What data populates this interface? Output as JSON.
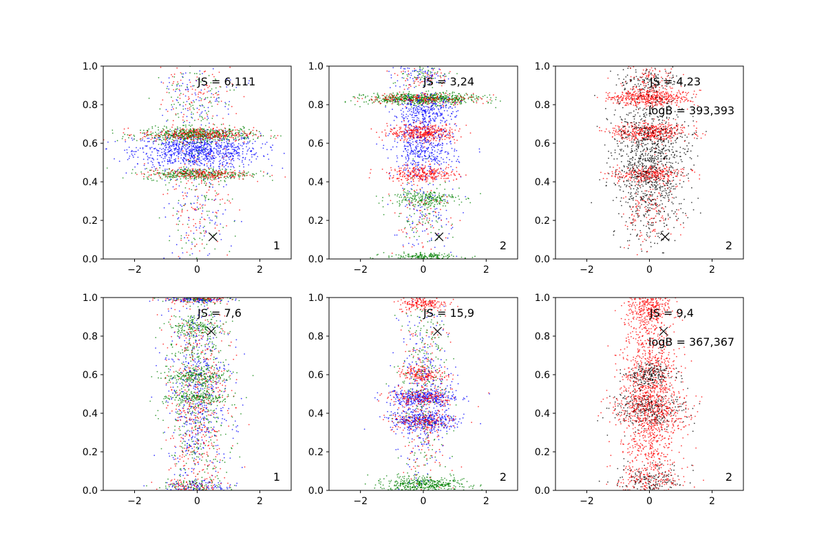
{
  "chart_data": [
    {
      "type": "scatter",
      "xlim": [
        -3,
        3
      ],
      "ylim": [
        0,
        1
      ],
      "xticks": [
        "−2",
        "0",
        "2"
      ],
      "yticks": [
        "0.0",
        "0.2",
        "0.4",
        "0.6",
        "0.8",
        "1.0"
      ],
      "grid": false,
      "annotation_js": "JS = 6,111",
      "annotation_logb": "",
      "panel_label": "1",
      "marker_x": {
        "x": 0.5,
        "y": 0.115
      },
      "colors": [
        "#0000ff",
        "#ff0000",
        "#008000"
      ],
      "clusters": [
        {
          "x": 0.0,
          "y": 0.56,
          "sx": 1.0,
          "sy": 0.045,
          "n": 900,
          "c": "#0000ff"
        },
        {
          "x": 0.0,
          "y": 0.645,
          "sx": 0.9,
          "sy": 0.018,
          "n": 550,
          "c": "#008000"
        },
        {
          "x": 0.0,
          "y": 0.645,
          "sx": 0.9,
          "sy": 0.018,
          "n": 300,
          "c": "#ff0000"
        },
        {
          "x": 0.0,
          "y": 0.44,
          "sx": 0.85,
          "sy": 0.015,
          "n": 350,
          "c": "#008000"
        },
        {
          "x": 0.0,
          "y": 0.44,
          "sx": 0.85,
          "sy": 0.015,
          "n": 200,
          "c": "#ff0000"
        },
        {
          "x": 0.0,
          "y": 0.3,
          "sx": 0.55,
          "sy": 0.18,
          "n": 350,
          "c": "mix"
        },
        {
          "x": 0.0,
          "y": 0.85,
          "sx": 0.55,
          "sy": 0.1,
          "n": 300,
          "c": "mix"
        }
      ]
    },
    {
      "type": "scatter",
      "xlim": [
        -3,
        3
      ],
      "ylim": [
        0,
        1
      ],
      "xticks": [
        "−2",
        "0",
        "2"
      ],
      "yticks": [
        "0.0",
        "0.2",
        "0.4",
        "0.6",
        "0.8",
        "1.0"
      ],
      "grid": false,
      "annotation_js": "JS = 3,24",
      "annotation_logb": "",
      "panel_label": "2",
      "marker_x": {
        "x": 0.5,
        "y": 0.115
      },
      "colors": [
        "#0000ff",
        "#ff0000",
        "#008000"
      ],
      "clusters": [
        {
          "x": 0.0,
          "y": 0.83,
          "sx": 0.9,
          "sy": 0.015,
          "n": 650,
          "c": "#008000"
        },
        {
          "x": 0.0,
          "y": 0.83,
          "sx": 0.9,
          "sy": 0.015,
          "n": 200,
          "c": "#ff0000"
        },
        {
          "x": 0.0,
          "y": 0.75,
          "sx": 0.5,
          "sy": 0.05,
          "n": 350,
          "c": "#0000ff"
        },
        {
          "x": 0.0,
          "y": 0.655,
          "sx": 0.55,
          "sy": 0.022,
          "n": 400,
          "c": "#ff0000"
        },
        {
          "x": 0.0,
          "y": 0.55,
          "sx": 0.5,
          "sy": 0.06,
          "n": 350,
          "c": "#0000ff"
        },
        {
          "x": 0.0,
          "y": 0.44,
          "sx": 0.55,
          "sy": 0.02,
          "n": 280,
          "c": "#ff0000"
        },
        {
          "x": 0.0,
          "y": 0.315,
          "sx": 0.55,
          "sy": 0.02,
          "n": 220,
          "c": "#008000"
        },
        {
          "x": 0.0,
          "y": 0.25,
          "sx": 0.45,
          "sy": 0.12,
          "n": 300,
          "c": "mix"
        },
        {
          "x": 0.0,
          "y": 0.01,
          "sx": 0.6,
          "sy": 0.01,
          "n": 180,
          "c": "#008000"
        },
        {
          "x": 0.0,
          "y": 0.95,
          "sx": 0.45,
          "sy": 0.03,
          "n": 200,
          "c": "mix"
        }
      ]
    },
    {
      "type": "scatter",
      "xlim": [
        -3,
        3
      ],
      "ylim": [
        0,
        1
      ],
      "xticks": [
        "−2",
        "0",
        "2"
      ],
      "yticks": [
        "0.0",
        "0.2",
        "0.4",
        "0.6",
        "0.8",
        "1.0"
      ],
      "grid": false,
      "annotation_js": "JS = 4,23",
      "annotation_logb": "logB = 393,393",
      "panel_label": "2",
      "marker_x": {
        "x": 0.5,
        "y": 0.115
      },
      "colors": [
        "#000000",
        "#ff0000"
      ],
      "clusters": [
        {
          "x": 0.0,
          "y": 0.835,
          "sx": 0.65,
          "sy": 0.02,
          "n": 480,
          "c": "#ff0000"
        },
        {
          "x": 0.0,
          "y": 0.66,
          "sx": 0.6,
          "sy": 0.025,
          "n": 450,
          "c": "#ff0000"
        },
        {
          "x": 0.0,
          "y": 0.44,
          "sx": 0.55,
          "sy": 0.02,
          "n": 300,
          "c": "#ff0000"
        },
        {
          "x": 0.0,
          "y": 0.55,
          "sx": 0.6,
          "sy": 0.15,
          "n": 900,
          "c": "#000000"
        },
        {
          "x": 0.0,
          "y": 0.25,
          "sx": 0.45,
          "sy": 0.12,
          "n": 350,
          "c": "mixbk"
        },
        {
          "x": 0.0,
          "y": 0.93,
          "sx": 0.45,
          "sy": 0.04,
          "n": 220,
          "c": "mixbk"
        }
      ]
    },
    {
      "type": "scatter",
      "xlim": [
        -3,
        3
      ],
      "ylim": [
        0,
        1
      ],
      "xticks": [
        "−2",
        "0",
        "2"
      ],
      "yticks": [
        "0.0",
        "0.2",
        "0.4",
        "0.6",
        "0.8",
        "1.0"
      ],
      "grid": false,
      "annotation_js": "JS = 7,6",
      "annotation_logb": "",
      "panel_label": "1",
      "marker_x": {
        "x": 0.45,
        "y": 0.825
      },
      "colors": [
        "#0000ff",
        "#ff0000",
        "#008000"
      ],
      "clusters": [
        {
          "x": 0.0,
          "y": 0.5,
          "sx": 0.5,
          "sy": 0.28,
          "n": 1600,
          "c": "mix"
        },
        {
          "x": 0.0,
          "y": 0.99,
          "sx": 0.55,
          "sy": 0.008,
          "n": 260,
          "c": "mix"
        },
        {
          "x": 0.0,
          "y": 0.02,
          "sx": 0.55,
          "sy": 0.02,
          "n": 260,
          "c": "mix"
        },
        {
          "x": 0.0,
          "y": 0.59,
          "sx": 0.5,
          "sy": 0.015,
          "n": 150,
          "c": "#008000"
        },
        {
          "x": 0.0,
          "y": 0.48,
          "sx": 0.5,
          "sy": 0.015,
          "n": 150,
          "c": "#008000"
        },
        {
          "x": 0.0,
          "y": 0.85,
          "sx": 0.45,
          "sy": 0.02,
          "n": 130,
          "c": "#008000"
        }
      ]
    },
    {
      "type": "scatter",
      "xlim": [
        -3,
        3
      ],
      "ylim": [
        0,
        1
      ],
      "xticks": [
        "−2",
        "0",
        "2"
      ],
      "yticks": [
        "0.0",
        "0.2",
        "0.4",
        "0.6",
        "0.8",
        "1.0"
      ],
      "grid": false,
      "annotation_js": "JS = 15,9",
      "annotation_logb": "",
      "panel_label": "2",
      "marker_x": {
        "x": 0.45,
        "y": 0.825
      },
      "colors": [
        "#0000ff",
        "#ff0000",
        "#008000"
      ],
      "clusters": [
        {
          "x": 0.0,
          "y": 0.48,
          "sx": 0.55,
          "sy": 0.025,
          "n": 350,
          "c": "#0000ff"
        },
        {
          "x": 0.0,
          "y": 0.36,
          "sx": 0.55,
          "sy": 0.025,
          "n": 350,
          "c": "#0000ff"
        },
        {
          "x": 0.0,
          "y": 0.48,
          "sx": 0.55,
          "sy": 0.02,
          "n": 150,
          "c": "#ff0000"
        },
        {
          "x": 0.0,
          "y": 0.36,
          "sx": 0.55,
          "sy": 0.02,
          "n": 150,
          "c": "#ff0000"
        },
        {
          "x": 0.0,
          "y": 0.6,
          "sx": 0.35,
          "sy": 0.02,
          "n": 160,
          "c": "#ff0000"
        },
        {
          "x": 0.0,
          "y": 0.03,
          "sx": 0.65,
          "sy": 0.02,
          "n": 420,
          "c": "#008000"
        },
        {
          "x": 0.0,
          "y": 0.5,
          "sx": 0.4,
          "sy": 0.28,
          "n": 800,
          "c": "mix"
        },
        {
          "x": 0.0,
          "y": 0.97,
          "sx": 0.4,
          "sy": 0.02,
          "n": 180,
          "c": "#ff0000"
        }
      ]
    },
    {
      "type": "scatter",
      "xlim": [
        -3,
        3
      ],
      "ylim": [
        0,
        1
      ],
      "xticks": [
        "−2",
        "0",
        "2"
      ],
      "yticks": [
        "0.0",
        "0.2",
        "0.4",
        "0.6",
        "0.8",
        "1.0"
      ],
      "grid": false,
      "annotation_js": "JS = 9,4",
      "annotation_logb": "logB = 367,367",
      "panel_label": "2",
      "marker_x": {
        "x": 0.45,
        "y": 0.825
      },
      "colors": [
        "#000000",
        "#ff0000"
      ],
      "clusters": [
        {
          "x": 0.0,
          "y": 0.5,
          "sx": 0.45,
          "sy": 0.28,
          "n": 1400,
          "c": "#ff0000"
        },
        {
          "x": 0.0,
          "y": 0.42,
          "sx": 0.6,
          "sy": 0.05,
          "n": 500,
          "c": "mixbk"
        },
        {
          "x": 0.0,
          "y": 0.05,
          "sx": 0.55,
          "sy": 0.04,
          "n": 300,
          "c": "mixbk"
        },
        {
          "x": 0.0,
          "y": 0.95,
          "sx": 0.35,
          "sy": 0.04,
          "n": 250,
          "c": "#ff0000"
        },
        {
          "x": 0.0,
          "y": 0.6,
          "sx": 0.35,
          "sy": 0.03,
          "n": 200,
          "c": "#000000"
        }
      ]
    }
  ]
}
